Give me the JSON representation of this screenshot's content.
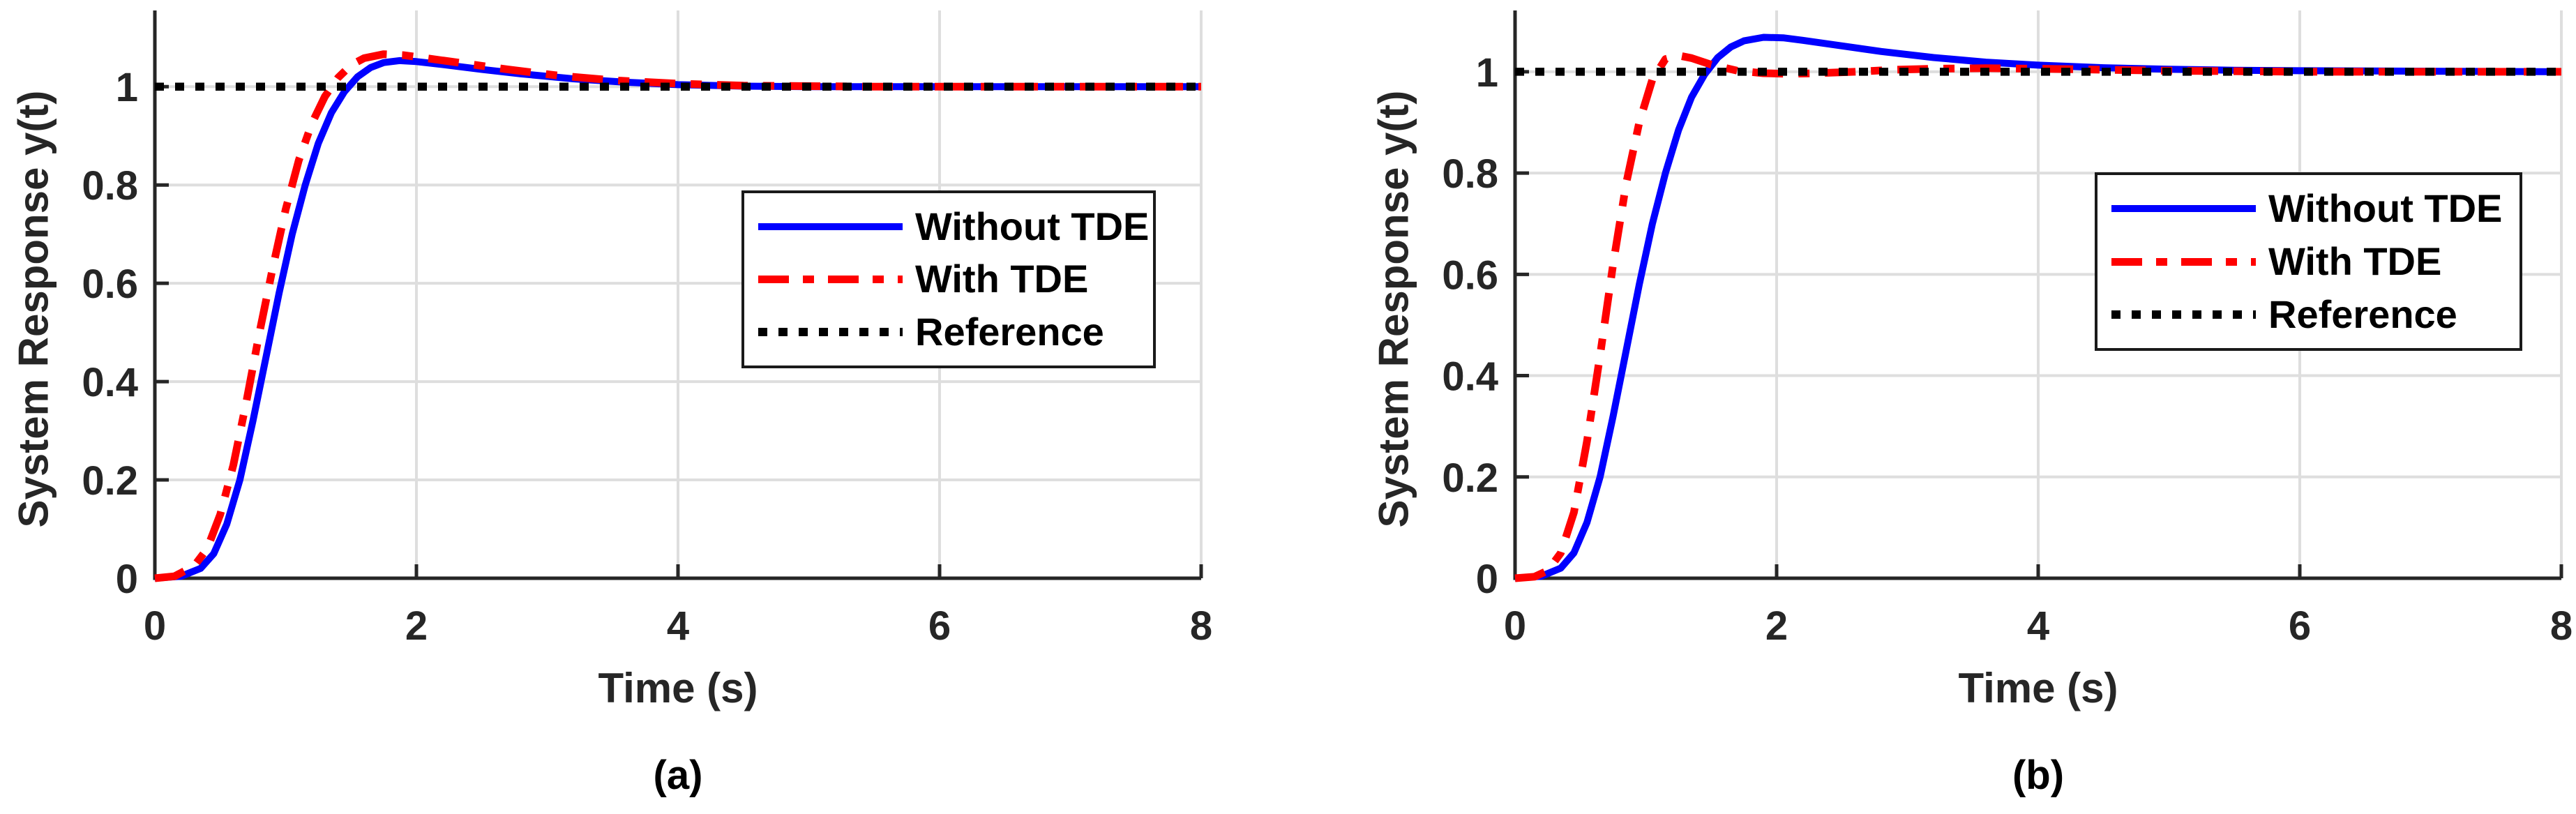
{
  "chart_data": [
    {
      "type": "line",
      "caption": "(a)",
      "xlabel": "Time (s)",
      "ylabel": "System Response y(t)",
      "xlim": [
        0,
        8
      ],
      "ylim": [
        0,
        1.155
      ],
      "xticks": [
        0,
        2,
        4,
        6,
        8
      ],
      "xtick_labels": [
        "0",
        "2",
        "4",
        "6",
        "8"
      ],
      "yticks": [
        0,
        0.2,
        0.4,
        0.6,
        0.8,
        1
      ],
      "ytick_labels": [
        "0",
        "0.2",
        "0.4",
        "0.6",
        "0.8",
        "1"
      ],
      "grid": true,
      "legend_position": "upper-right-inside",
      "colors": {
        "axis": "#262626",
        "grid": "#dedede",
        "text": "#262626"
      },
      "series": [
        {
          "name": "Without TDE",
          "color": "#0000ff",
          "style": "solid",
          "width": 10,
          "points": [
            [
              0,
              0
            ],
            [
              0.2,
              0.004
            ],
            [
              0.35,
              0.02
            ],
            [
              0.45,
              0.05
            ],
            [
              0.55,
              0.11
            ],
            [
              0.65,
              0.2
            ],
            [
              0.75,
              0.32
            ],
            [
              0.85,
              0.45
            ],
            [
              0.95,
              0.58
            ],
            [
              1.05,
              0.7
            ],
            [
              1.15,
              0.8
            ],
            [
              1.25,
              0.885
            ],
            [
              1.35,
              0.947
            ],
            [
              1.45,
              0.99
            ],
            [
              1.55,
              1.02
            ],
            [
              1.65,
              1.039
            ],
            [
              1.75,
              1.049
            ],
            [
              1.87,
              1.053
            ],
            [
              2.0,
              1.051
            ],
            [
              2.2,
              1.045
            ],
            [
              2.5,
              1.035
            ],
            [
              2.8,
              1.026
            ],
            [
              3.2,
              1.016
            ],
            [
              3.6,
              1.009
            ],
            [
              4.0,
              1.004
            ],
            [
              4.5,
              1.001
            ],
            [
              5.0,
              1.0
            ],
            [
              5.5,
              1.0
            ],
            [
              6.5,
              1.0
            ],
            [
              8.0,
              1.0
            ]
          ]
        },
        {
          "name": "With TDE",
          "color": "#ff0000",
          "style": "dash-dot",
          "width": 11,
          "points": [
            [
              0,
              0
            ],
            [
              0.15,
              0.004
            ],
            [
              0.3,
              0.025
            ],
            [
              0.4,
              0.06
            ],
            [
              0.5,
              0.13
            ],
            [
              0.6,
              0.23
            ],
            [
              0.7,
              0.36
            ],
            [
              0.8,
              0.5
            ],
            [
              0.9,
              0.63
            ],
            [
              1.0,
              0.75
            ],
            [
              1.1,
              0.85
            ],
            [
              1.2,
              0.925
            ],
            [
              1.3,
              0.98
            ],
            [
              1.4,
              1.018
            ],
            [
              1.5,
              1.044
            ],
            [
              1.6,
              1.058
            ],
            [
              1.75,
              1.066
            ],
            [
              1.9,
              1.064
            ],
            [
              2.1,
              1.057
            ],
            [
              2.4,
              1.046
            ],
            [
              2.7,
              1.035
            ],
            [
              3.1,
              1.022
            ],
            [
              3.5,
              1.013
            ],
            [
              4.0,
              1.006
            ],
            [
              4.5,
              1.002
            ],
            [
              5.0,
              1.001
            ],
            [
              5.5,
              1.0
            ],
            [
              6.5,
              1.0
            ],
            [
              8.0,
              1.0
            ]
          ]
        },
        {
          "name": "Reference",
          "color": "#000000",
          "style": "dotted",
          "width": 11.5,
          "points": [
            [
              0,
              1
            ],
            [
              8,
              1
            ]
          ]
        }
      ]
    },
    {
      "type": "line",
      "caption": "(b)",
      "xlabel": "Time (s)",
      "ylabel": "System Response y(t)",
      "xlim": [
        0,
        8
      ],
      "ylim": [
        0,
        1.121
      ],
      "xticks": [
        0,
        2,
        4,
        6,
        8
      ],
      "xtick_labels": [
        "0",
        "2",
        "4",
        "6",
        "8"
      ],
      "yticks": [
        0,
        0.2,
        0.4,
        0.6,
        0.8,
        1
      ],
      "ytick_labels": [
        "0",
        "0.2",
        "0.4",
        "0.6",
        "0.8",
        "1"
      ],
      "grid": true,
      "legend_position": "middle-right-inside",
      "colors": {
        "axis": "#262626",
        "grid": "#dedede",
        "text": "#262626"
      },
      "series": [
        {
          "name": "Without TDE",
          "color": "#0000ff",
          "style": "solid",
          "width": 10,
          "points": [
            [
              0,
              0
            ],
            [
              0.2,
              0.004
            ],
            [
              0.35,
              0.02
            ],
            [
              0.45,
              0.05
            ],
            [
              0.55,
              0.11
            ],
            [
              0.65,
              0.2
            ],
            [
              0.75,
              0.32
            ],
            [
              0.85,
              0.45
            ],
            [
              0.95,
              0.58
            ],
            [
              1.05,
              0.7
            ],
            [
              1.15,
              0.8
            ],
            [
              1.25,
              0.885
            ],
            [
              1.35,
              0.95
            ],
            [
              1.45,
              0.995
            ],
            [
              1.55,
              1.028
            ],
            [
              1.65,
              1.049
            ],
            [
              1.75,
              1.061
            ],
            [
              1.9,
              1.068
            ],
            [
              2.05,
              1.067
            ],
            [
              2.2,
              1.062
            ],
            [
              2.5,
              1.051
            ],
            [
              2.8,
              1.04
            ],
            [
              3.2,
              1.028
            ],
            [
              3.6,
              1.019
            ],
            [
              4.0,
              1.013
            ],
            [
              4.5,
              1.008
            ],
            [
              5.0,
              1.005
            ],
            [
              5.5,
              1.003
            ],
            [
              6.0,
              1.002
            ],
            [
              7.0,
              1.001
            ],
            [
              8.0,
              1.0
            ]
          ]
        },
        {
          "name": "With TDE",
          "color": "#ff0000",
          "style": "dash-dot",
          "width": 11,
          "points": [
            [
              0,
              0
            ],
            [
              0.15,
              0.003
            ],
            [
              0.25,
              0.015
            ],
            [
              0.35,
              0.05
            ],
            [
              0.45,
              0.13
            ],
            [
              0.55,
              0.27
            ],
            [
              0.65,
              0.44
            ],
            [
              0.75,
              0.62
            ],
            [
              0.85,
              0.78
            ],
            [
              0.95,
              0.9
            ],
            [
              1.05,
              0.985
            ],
            [
              1.15,
              1.025
            ],
            [
              1.25,
              1.032
            ],
            [
              1.35,
              1.027
            ],
            [
              1.5,
              1.014
            ],
            [
              1.7,
              1.002
            ],
            [
              1.9,
              0.997
            ],
            [
              2.1,
              0.996
            ],
            [
              2.3,
              0.997
            ],
            [
              2.6,
              1.0
            ],
            [
              2.9,
              1.004
            ],
            [
              3.2,
              1.006
            ],
            [
              3.6,
              1.007
            ],
            [
              4.0,
              1.006
            ],
            [
              4.5,
              1.004
            ],
            [
              5.0,
              1.002
            ],
            [
              5.5,
              1.001
            ],
            [
              6.0,
              1.0
            ],
            [
              7.0,
              1.0
            ],
            [
              8.0,
              1.0
            ]
          ]
        },
        {
          "name": "Reference",
          "color": "#000000",
          "style": "dotted",
          "width": 11.5,
          "points": [
            [
              0,
              1
            ],
            [
              8,
              1
            ]
          ]
        }
      ]
    }
  ]
}
